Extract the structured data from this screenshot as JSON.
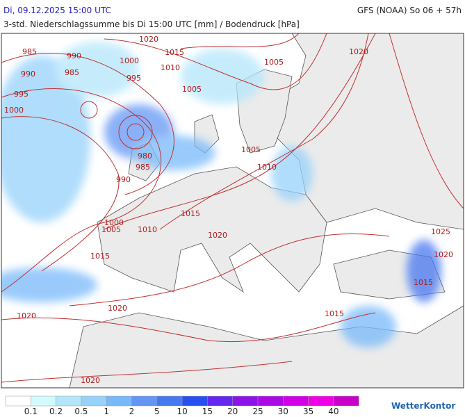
{
  "header": {
    "date": "Di, 09.12.2025 15:00 UTC",
    "model": "GFS (NOAA) So 06 + 57h",
    "subtitle": "3-std. Niederschlagssumme bis Di 15:00 UTC [mm] / Bodendruck [hPa]"
  },
  "isobar_labels": [
    985,
    990,
    990,
    985,
    995,
    1000,
    1000,
    995,
    1020,
    1015,
    1010,
    1005,
    1005,
    1020,
    980,
    985,
    990,
    1005,
    1010,
    1000,
    1005,
    1010,
    1015,
    1020,
    1015,
    1020,
    1020,
    1025,
    1020,
    1015,
    1015,
    1020
  ],
  "legend": {
    "colors": [
      "#ffffff",
      "#d2fafa",
      "#b4e6fa",
      "#96d2fa",
      "#78b9fa",
      "#6496f5",
      "#4678f0",
      "#2850f0",
      "#6428f0",
      "#8c14e6",
      "#aa0ae6",
      "#d200e6",
      "#f000e6",
      "#c800c8"
    ],
    "labels": [
      "0.1",
      "0.2",
      "0.5",
      "1",
      "2",
      "5",
      "10",
      "15",
      "20",
      "25",
      "30",
      "35",
      "40"
    ]
  },
  "logo": "WetterKontor"
}
